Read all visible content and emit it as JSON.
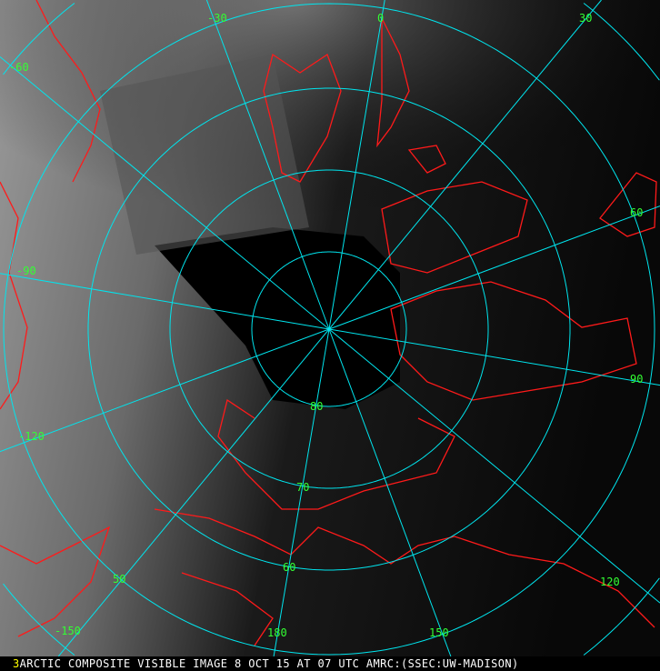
{
  "image": {
    "type": "polar stereographic satellite composite",
    "colors": {
      "grid": "#00e5ee",
      "labels": "#33ff33",
      "coastlines": "#ff1a1a",
      "caption_text": "#ffffff",
      "frame_number": "#ffff00"
    }
  },
  "grid": {
    "longitude_labels": [
      "-30",
      "0",
      "30",
      "-60",
      "60",
      "-90",
      "90",
      "-120",
      "120",
      "-150",
      "150",
      "180"
    ],
    "latitude_labels": [
      "80",
      "70",
      "60",
      "50"
    ]
  },
  "caption": {
    "frame_number": "3",
    "text": "ARCTIC COMPOSITE VISIBLE IMAGE 8 OCT 15 AT 07 UTC AMRC:(SSEC:UW-MADISON)"
  }
}
